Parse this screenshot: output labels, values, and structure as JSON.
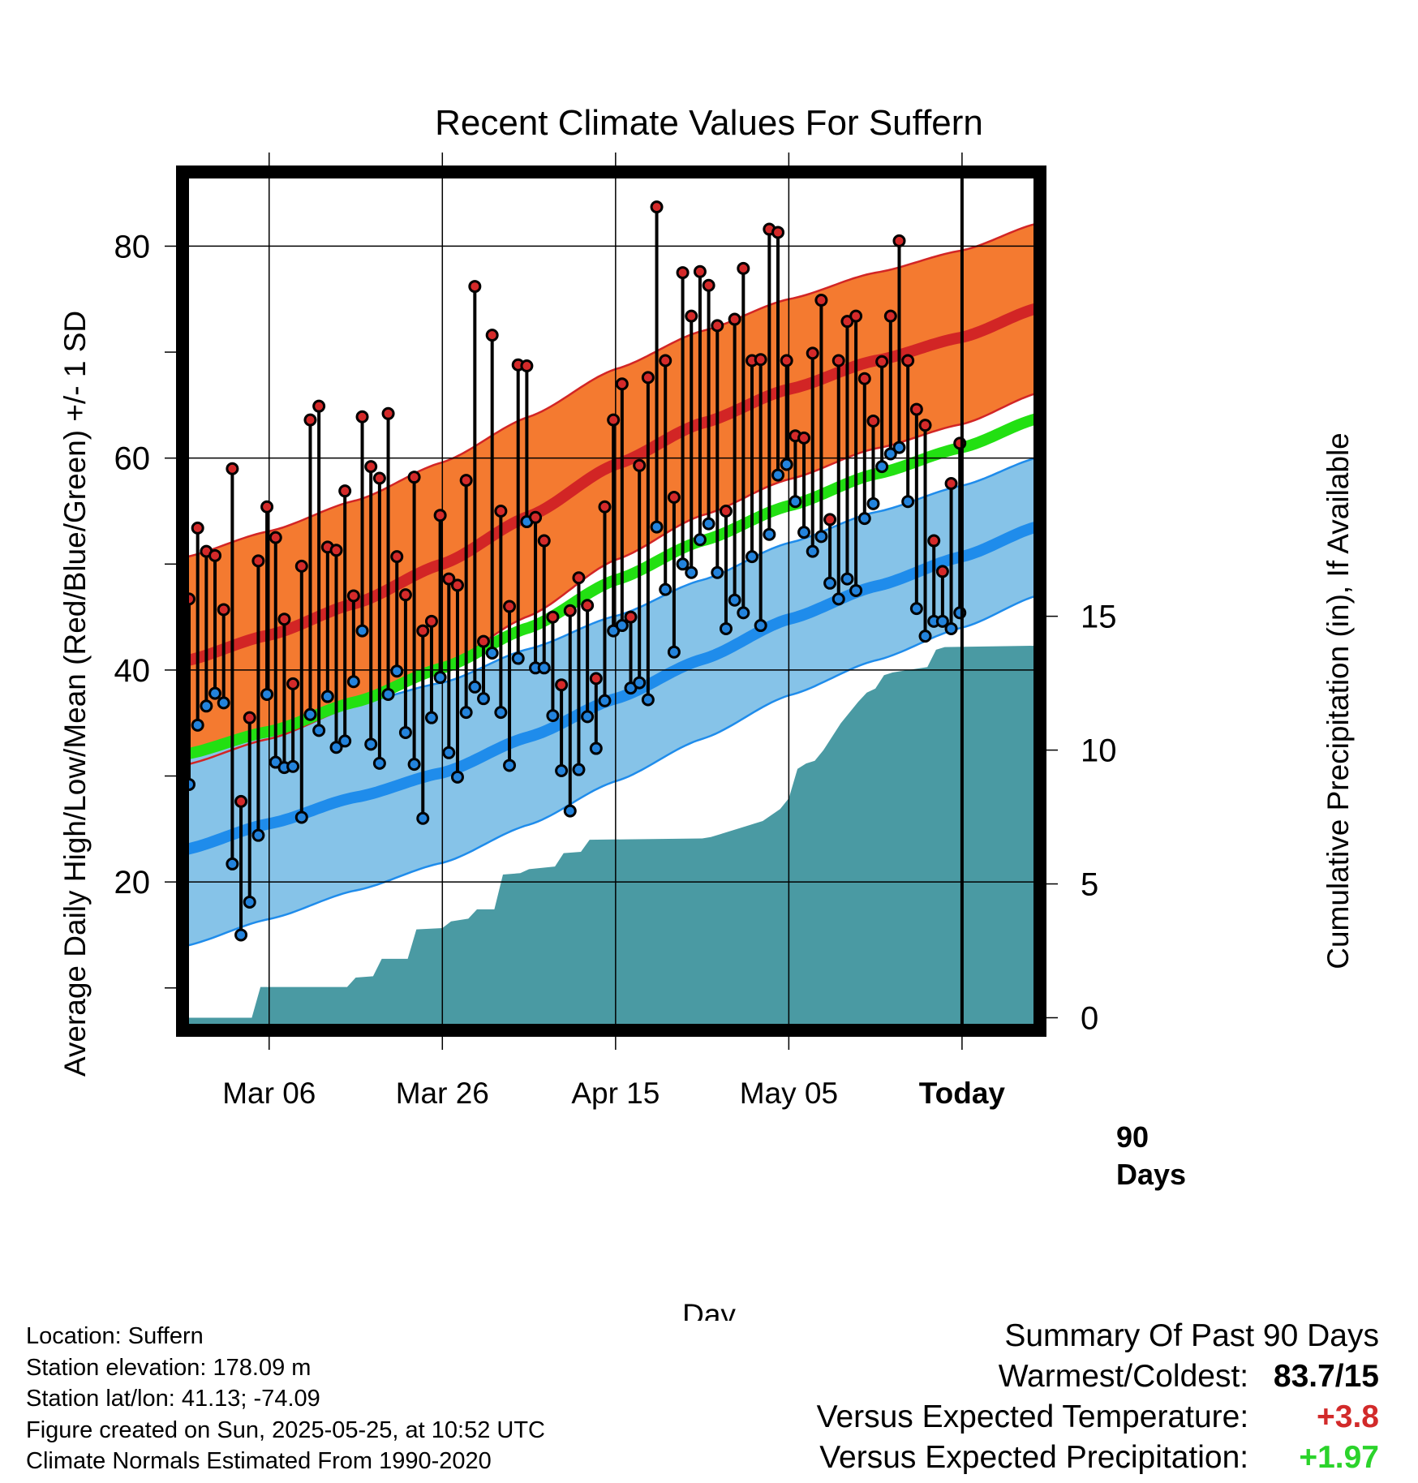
{
  "chart_data": {
    "type": "line",
    "title": "Recent Climate Values For Suffern",
    "xlabel": "Day",
    "ylabel": "Average Daily High/Low/Mean (Red/Blue/Green) +/- 1 SD",
    "y2label": "Cumulative Precipitation (in), If Available",
    "x_tick_labels": [
      "Mar 06",
      "Mar 26",
      "Apr 15",
      "May 05",
      "Today"
    ],
    "x_range": [
      "2025-02-24",
      "2025-06-03"
    ],
    "today": "2025-05-25",
    "y_ticks": [
      20,
      40,
      60,
      80
    ],
    "ylim": [
      6,
      87
    ],
    "y2_ticks": [
      0,
      5,
      10,
      15
    ],
    "y2lim": [
      -0.47,
      31.6
    ],
    "period_label": [
      "90",
      "Days"
    ],
    "grid": true,
    "colors": {
      "high_band": "#f47a30",
      "high_line": "#d22525",
      "low_band": "#86c3e8",
      "low_line": "#1f8ceb",
      "mean": "#22e012",
      "precip": "#4a9aa3",
      "high_marker": "#d42a2a",
      "low_marker": "#2383dc"
    },
    "normals": {
      "x": [
        "2025-02-24",
        "2025-03-06",
        "2025-03-16",
        "2025-03-26",
        "2025-04-05",
        "2025-04-15",
        "2025-04-25",
        "2025-05-05",
        "2025-05-15",
        "2025-05-25",
        "2025-06-03"
      ],
      "high_mean": [
        40.8,
        43.3,
        46.3,
        50.0,
        54.5,
        59.4,
        63.3,
        66.5,
        69.2,
        71.4,
        74.2
      ],
      "high_sd": [
        9.8,
        9.8,
        9.7,
        9.6,
        9.4,
        9.0,
        8.7,
        8.5,
        8.3,
        8.2,
        8.0
      ],
      "low_mean": [
        23.0,
        25.5,
        28.0,
        30.3,
        33.7,
        37.3,
        41.0,
        44.8,
        47.9,
        50.7,
        53.6
      ],
      "low_sd": [
        9.1,
        9.0,
        8.8,
        8.5,
        8.3,
        7.8,
        7.5,
        7.2,
        7.0,
        6.7,
        6.5
      ],
      "mean": [
        32.0,
        34.2,
        37.0,
        40.2,
        44.0,
        48.5,
        52.2,
        55.5,
        58.5,
        61.0,
        63.8
      ]
    },
    "series": [
      {
        "name": "High",
        "values": [
          46.7,
          53.4,
          51.2,
          50.8,
          45.7,
          59.0,
          27.6,
          35.5,
          50.3,
          55.4,
          52.5,
          44.8,
          38.7,
          49.8,
          63.6,
          64.9,
          51.6,
          51.3,
          56.9,
          47.0,
          63.9,
          59.2,
          58.1,
          64.2,
          50.7,
          47.1,
          58.2,
          43.7,
          44.6,
          54.6,
          48.6,
          48.0,
          57.9,
          76.2,
          42.7,
          71.6,
          55.0,
          46.0,
          68.8,
          68.7,
          54.4,
          52.2,
          45.0,
          38.6,
          45.6,
          48.7,
          46.1,
          39.2,
          55.4,
          63.6,
          67.0,
          45.0,
          59.3,
          67.6,
          83.7,
          69.2,
          56.3,
          77.5,
          73.4,
          77.6,
          76.3,
          72.5,
          55.0,
          73.1,
          77.9,
          69.2,
          69.3,
          81.6,
          81.3,
          69.2,
          62.1,
          61.9,
          69.9,
          74.9,
          54.2,
          69.2,
          72.9,
          73.4,
          67.5,
          63.5,
          69.1,
          73.4,
          80.5,
          69.2,
          64.6,
          63.1,
          52.2,
          49.3,
          57.6,
          61.4
        ]
      },
      {
        "name": "Low",
        "values": [
          29.2,
          34.8,
          36.6,
          37.8,
          36.9,
          21.7,
          15.0,
          18.1,
          24.4,
          37.7,
          31.3,
          30.8,
          30.9,
          26.1,
          35.8,
          34.3,
          37.5,
          32.7,
          33.3,
          38.9,
          43.7,
          33.0,
          31.2,
          37.7,
          39.9,
          34.1,
          31.1,
          26.0,
          35.5,
          39.3,
          32.2,
          29.9,
          36.0,
          38.4,
          37.3,
          41.6,
          36.0,
          31.0,
          41.1,
          54.0,
          40.2,
          40.2,
          35.7,
          30.5,
          26.7,
          30.6,
          35.6,
          32.6,
          37.1,
          43.7,
          44.2,
          38.3,
          38.8,
          37.2,
          53.5,
          47.6,
          41.7,
          50.0,
          49.2,
          52.3,
          53.8,
          49.2,
          43.9,
          46.6,
          45.4,
          50.7,
          44.2,
          52.8,
          58.4,
          59.4,
          55.9,
          53.0,
          51.2,
          52.6,
          48.2,
          46.7,
          48.6,
          47.5,
          54.3,
          55.7,
          59.2,
          60.4,
          61.0,
          55.9,
          45.8,
          43.2,
          44.6,
          44.6,
          43.9,
          45.4
        ]
      }
    ],
    "precipitation": {
      "x": [
        "2025-02-24",
        "2025-03-04",
        "2025-03-05",
        "2025-03-15",
        "2025-03-16",
        "2025-03-18",
        "2025-03-19",
        "2025-03-22",
        "2025-03-23",
        "2025-03-26",
        "2025-03-27",
        "2025-03-29",
        "2025-03-30",
        "2025-04-01",
        "2025-04-02",
        "2025-04-04",
        "2025-04-05",
        "2025-04-08",
        "2025-04-09",
        "2025-04-11",
        "2025-04-12",
        "2025-04-25",
        "2025-04-26",
        "2025-05-01",
        "2025-05-02",
        "2025-05-04",
        "2025-05-05",
        "2025-05-06",
        "2025-05-07",
        "2025-05-08",
        "2025-05-09",
        "2025-05-11",
        "2025-05-13",
        "2025-05-14",
        "2025-05-15",
        "2025-05-16",
        "2025-05-17",
        "2025-05-21",
        "2025-05-22",
        "2025-05-23",
        "2025-06-03"
      ],
      "values": [
        0.0,
        0.0,
        1.15,
        1.15,
        1.5,
        1.55,
        2.2,
        2.2,
        3.3,
        3.35,
        3.6,
        3.7,
        4.05,
        4.05,
        5.35,
        5.4,
        5.55,
        5.65,
        6.15,
        6.2,
        6.65,
        6.7,
        6.75,
        7.25,
        7.35,
        7.8,
        8.2,
        9.3,
        9.5,
        9.6,
        10.0,
        11.0,
        11.8,
        12.15,
        12.3,
        12.8,
        12.9,
        13.1,
        13.75,
        13.85,
        13.9
      ]
    }
  },
  "info": {
    "location": "Location: Suffern",
    "elevation": "Station elevation: 178.09 m",
    "latlon": "Station lat/lon: 41.13; -74.09",
    "created": "Figure created on Sun, 2025-05-25, at 10:52 UTC",
    "normals_period": "Climate Normals Estimated From 1990-2020"
  },
  "summary": {
    "title": "Summary Of Past 90 Days",
    "extremes_label": "Warmest/Coldest:",
    "extremes_value": "83.7/15",
    "temp_label": "Versus Expected Temperature:",
    "temp_value": "+3.8",
    "temp_color": "#d22a2a",
    "precip_label": "Versus Expected Precipitation:",
    "precip_value": "+1.97",
    "precip_color": "#2bd32b"
  }
}
